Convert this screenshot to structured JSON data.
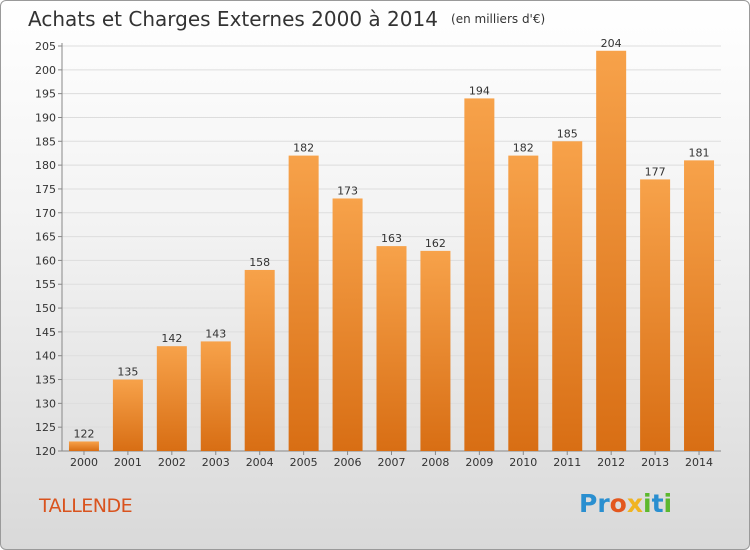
{
  "header": {
    "title": "Achats et Charges Externes 2000 à 2014",
    "unit_note": "(en milliers d'€)"
  },
  "footer": {
    "commune": "TALLENDE",
    "logo": {
      "letters": [
        "P",
        "r",
        "o",
        "x",
        "i",
        "t",
        "i"
      ],
      "colors": [
        "#2a8fd0",
        "#2a8fd0",
        "#e3571e",
        "#f0b422",
        "#5cb82e",
        "#2a8fd0",
        "#5cb82e"
      ]
    }
  },
  "colors": {
    "bar_light": "#f7a24a",
    "bar_dark": "#d86e14",
    "grid": "#dddddd",
    "text": "#333333",
    "accent": "#d9531e"
  },
  "chart_data": {
    "type": "bar",
    "categories": [
      "2000",
      "2001",
      "2002",
      "2003",
      "2004",
      "2005",
      "2006",
      "2007",
      "2008",
      "2009",
      "2010",
      "2011",
      "2012",
      "2013",
      "2014"
    ],
    "values": [
      122,
      135,
      142,
      143,
      158,
      182,
      173,
      163,
      162,
      194,
      182,
      185,
      204,
      177,
      181
    ],
    "ylim": [
      120,
      205
    ],
    "yticks": [
      120,
      125,
      130,
      135,
      140,
      145,
      150,
      155,
      160,
      165,
      170,
      175,
      180,
      185,
      190,
      195,
      200,
      205
    ],
    "grid": true,
    "data_labels": true
  }
}
